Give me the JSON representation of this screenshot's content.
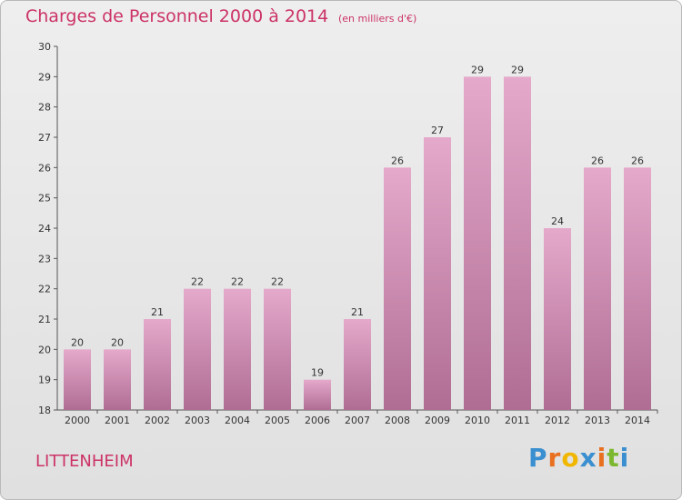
{
  "header": {
    "title": "Charges de Personnel 2000 à 2014",
    "subtitle": "(en milliers d'€)"
  },
  "footer": {
    "commune": "LITTENHEIM",
    "logo": "Proxiti"
  },
  "colors": {
    "accent": "#cc3366",
    "bar_top": "#e4a9cb",
    "bar_bottom": "#b06d94",
    "logo_letters": [
      "#3a8fd0",
      "#e8701f",
      "#f1b700",
      "#3a8fd0",
      "#e8701f",
      "#7cb82f",
      "#3a8fd0"
    ]
  },
  "chart_data": {
    "type": "bar",
    "title": "Charges de Personnel 2000 à 2014",
    "subtitle": "(en milliers d'€)",
    "categories": [
      "2000",
      "2001",
      "2002",
      "2003",
      "2004",
      "2005",
      "2006",
      "2007",
      "2008",
      "2009",
      "2010",
      "2011",
      "2012",
      "2013",
      "2014"
    ],
    "values": [
      20,
      20,
      21,
      22,
      22,
      22,
      19,
      21,
      26,
      27,
      29,
      29,
      24,
      26,
      26
    ],
    "ylim": [
      18,
      30
    ],
    "yticks": [
      18,
      19,
      20,
      21,
      22,
      23,
      24,
      25,
      26,
      27,
      28,
      29,
      30
    ],
    "grid": false,
    "xlabel": "",
    "ylabel": ""
  }
}
